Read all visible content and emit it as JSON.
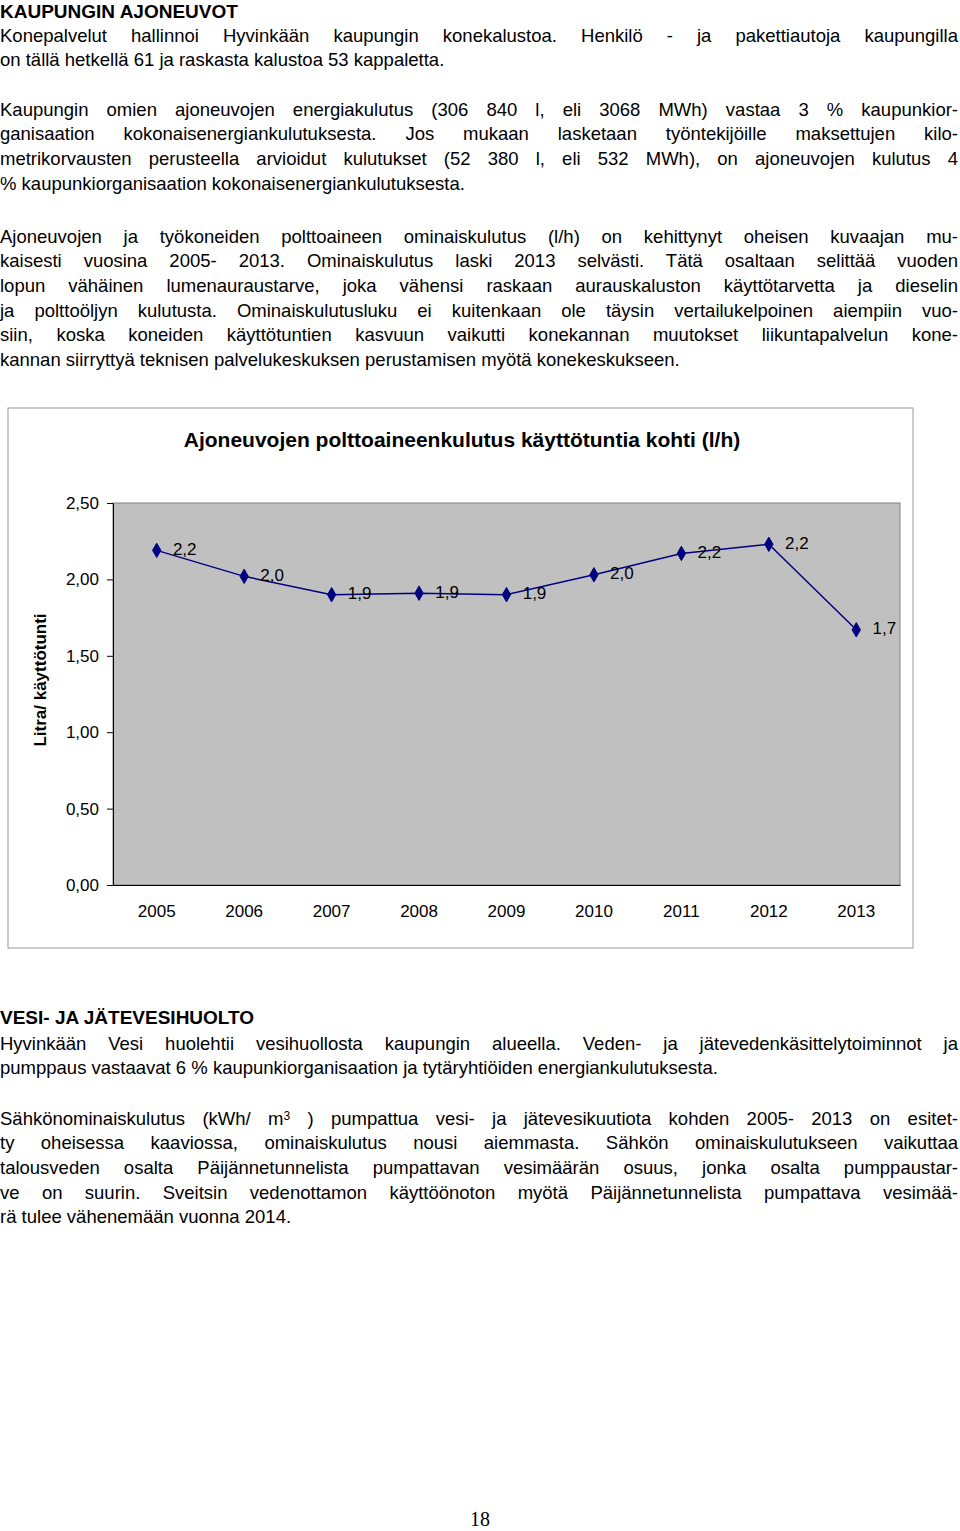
{
  "heading_1": "KAUPUNGIN AJONEUVOT",
  "paragraphs_1": [
    {
      "lines": [
        "Konepalvelut hallinnoi Hyvinkään kaupungin konekalustoa. Henkilö - ja pakettiautoja kaupungilla",
        "on tällä hetkellä 61 ja raskasta kalustoa 53 kappaletta."
      ]
    },
    {
      "lines": [
        "Kaupungin omien ajoneuvojen energiakulutus (306 840 l, eli 3068 MWh) vastaa 3 % kaupunkior-",
        "ganisaation kokonaisenergiankulutuksesta. Jos mukaan lasketaan työntekijöille maksettujen kilo-",
        "metrikorvausten perusteella arvioidut kulutukset (52 380 l, eli 532 MWh), on ajoneuvojen kulutus 4",
        "% kaupunkiorganisaation kokonaisenergiankulutuksesta."
      ]
    },
    {
      "lines": [
        "Ajoneuvojen ja työkoneiden polttoaineen ominaiskulutus (l/h) on kehittynyt oheisen kuvaajan mu-",
        "kaisesti vuosina 2005- 2013. Ominaiskulutus laski 2013 selvästi. Tätä osaltaan selittää vuoden",
        "lopun vähäinen lumenauraustarve, joka vähensi raskaan aurauskaluston käyttötarvetta ja dieselin",
        "ja polttoöljyn kulutusta. Ominaiskulutusluku ei kuitenkaan ole täysin vertailukelpoinen aiempiin vuo-",
        "siin, koska koneiden käyttötuntien kasvuun vaikutti konekannan muutokset liikuntapalvelun kone-",
        "kannan siirryttyä teknisen palvelukeskuksen perustamisen myötä konekeskukseen."
      ]
    }
  ],
  "chart_data": {
    "type": "line",
    "title": "Ajoneuvojen polttoaineenkulutus käyttötuntia kohti (l/h)",
    "y_label": "Litra/ käyttötunti",
    "categories": [
      "2005",
      "2006",
      "2007",
      "2008",
      "2009",
      "2010",
      "2011",
      "2012",
      "2013"
    ],
    "values": [
      2.19,
      2.02,
      1.9,
      1.91,
      1.9,
      2.03,
      2.17,
      2.23,
      1.67
    ],
    "value_labels": [
      "2,2",
      "2,0",
      "1,9",
      "1,9",
      "1,9",
      "2,0",
      "2,2",
      "2,2",
      "1,7"
    ],
    "color": "#000080",
    "marker": "diamond",
    "data_labels": true,
    "grid": false,
    "ylim": [
      0,
      2.5
    ],
    "yticks": [
      {
        "value": 0,
        "label": "0,00"
      },
      {
        "value": 0.5,
        "label": "0,50"
      },
      {
        "value": 1,
        "label": "1,00"
      },
      {
        "value": 1.5,
        "label": "1,50"
      },
      {
        "value": 2,
        "label": "2,00"
      },
      {
        "value": 2.5,
        "label": "2,50"
      }
    ]
  },
  "heading_2": "VESI- JA JÄTEVESIHUOLTO",
  "paragraphs_2": [
    {
      "lines": [
        "Hyvinkään Vesi huolehtii vesihuollosta kaupungin alueella. Veden- ja jätevedenkäsittelytoiminnot ja",
        "pumppaus vastaavat 6 % kaupunkiorganisaation ja tytäryhtiöiden energiankulutuksesta."
      ]
    },
    {
      "lines": [
        {
          "runs": [
            {
              "text": "Sähkönominaiskulutus (kWh/ m"
            },
            {
              "text": "3",
              "sup": true
            },
            {
              "text": " ) pumpattua vesi- ja jätevesikuutiota kohden 2005- 2013 on esitet-"
            }
          ]
        },
        "ty oheisessa kaaviossa, ominaiskulutus nousi aiemmasta. Sähkön ominaiskulutukseen vaikuttaa",
        "talousveden osalta Päijännetunnelista pumpattavan vesimäärän osuus, jonka osalta pumppaustar-",
        "ve on suurin. Sveitsin vedenottamon käyttöönoton myötä Päijännetunnelista pumpattava vesimää-",
        "rä tulee vähenemään vuonna 2014."
      ]
    }
  ],
  "page_number": "18"
}
